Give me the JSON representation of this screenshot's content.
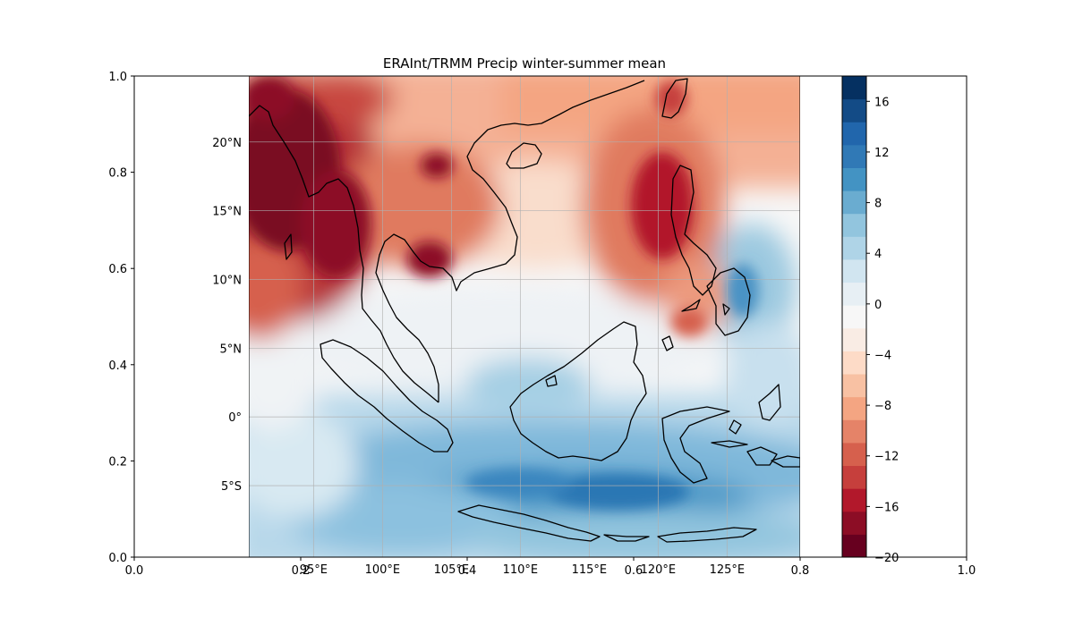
{
  "title": "ERAInt/TRMM Precip winter-summer mean",
  "outer_axes": {
    "x_ticks": [
      "0.0",
      "0.2",
      "0.4",
      "0.6",
      "0.8",
      "1.0"
    ],
    "y_ticks": [
      "0.0",
      "0.2",
      "0.4",
      "0.6",
      "0.8",
      "1.0"
    ]
  },
  "map": {
    "lon_labels": [
      "95°E",
      "100°E",
      "105°E",
      "110°E",
      "115°E",
      "120°E",
      "125°E"
    ],
    "lat_labels": [
      "20°N",
      "15°N",
      "10°N",
      "5°N",
      "0°",
      "5°S"
    ]
  },
  "colorbar": {
    "tick_labels": [
      "16",
      "12",
      "8",
      "4",
      "0",
      "−4",
      "−8",
      "−12",
      "−16",
      "−20"
    ],
    "levels": [
      -20,
      -18,
      -16,
      -14,
      -12,
      -10,
      -8,
      -6,
      -4,
      -2,
      0,
      2,
      4,
      6,
      8,
      10,
      12,
      14,
      16,
      18
    ],
    "colors": [
      "#67001f",
      "#8c0d25",
      "#b2182b",
      "#c63f3c",
      "#d6604d",
      "#e58368",
      "#f4a582",
      "#f8c1a3",
      "#fddbc7",
      "#f9ece4",
      "#f7f7f7",
      "#e7eff4",
      "#d1e5f0",
      "#afd4e7",
      "#92c5de",
      "#6aacd0",
      "#4393c3",
      "#3079b6",
      "#2166ac",
      "#134b86",
      "#053061"
    ]
  },
  "chart_data": {
    "type": "heatmap",
    "title": "ERAInt/TRMM Precip winter-summer mean",
    "xlabel": "",
    "ylabel": "",
    "xlim": [
      90.3,
      130.3
    ],
    "ylim": [
      -10.2,
      24.8
    ],
    "colorbar_range": [
      -20,
      18
    ],
    "colorbar_ticks": [
      -20,
      -16,
      -12,
      -8,
      -4,
      0,
      4,
      8,
      12,
      16
    ],
    "grid": true
  }
}
